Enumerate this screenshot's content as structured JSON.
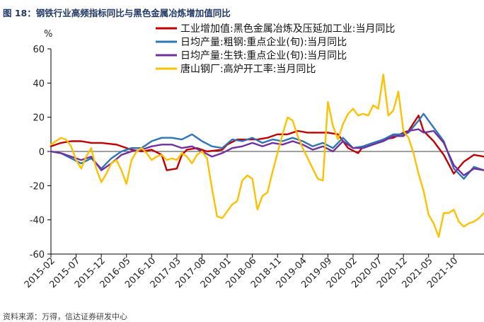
{
  "figure": {
    "title": "图 18：钢铁行业高频指标同比与黑色金属冶炼增加值同比",
    "source": "资料来源：万得，信达证券研发中心"
  },
  "chart_data": {
    "type": "line",
    "title": "",
    "ylabel": "%",
    "ylim": [
      -60,
      60
    ],
    "yticks": [
      60,
      40,
      20,
      0,
      -20,
      -40,
      -60
    ],
    "xlim": [
      "2015-02",
      "2022-04"
    ],
    "xticks": [
      "2015-02",
      "2015-07",
      "2015-12",
      "2016-05",
      "2016-10",
      "2017-03",
      "2017-08",
      "2018-01",
      "2018-06",
      "2018-11",
      "2019-04",
      "2019-09",
      "2020-02",
      "2020-07",
      "2020-12",
      "2021-05",
      "2021-10"
    ],
    "legend_position": "top-right",
    "series": [
      {
        "name": "工业增加值:黑色金属冶炼及压延加工业:当月同比",
        "color": "#c00000",
        "points": [
          [
            "2015-02",
            3
          ],
          [
            "2015-04",
            5
          ],
          [
            "2015-06",
            6
          ],
          [
            "2015-08",
            6
          ],
          [
            "2015-10",
            5
          ],
          [
            "2015-12",
            5
          ],
          [
            "2016-03",
            4
          ],
          [
            "2016-06",
            1
          ],
          [
            "2016-08",
            0
          ],
          [
            "2016-10",
            1
          ],
          [
            "2016-12",
            -2
          ],
          [
            "2017-01",
            -11
          ],
          [
            "2017-03",
            -10
          ],
          [
            "2017-04",
            -2
          ],
          [
            "2017-05",
            1
          ],
          [
            "2017-07",
            2
          ],
          [
            "2017-09",
            0
          ],
          [
            "2017-12",
            1
          ],
          [
            "2018-01",
            4
          ],
          [
            "2018-03",
            7
          ],
          [
            "2018-05",
            7
          ],
          [
            "2018-07",
            7
          ],
          [
            "2018-09",
            8
          ],
          [
            "2018-11",
            10
          ],
          [
            "2019-01",
            10
          ],
          [
            "2019-03",
            12
          ],
          [
            "2019-05",
            11
          ],
          [
            "2019-07",
            11
          ],
          [
            "2019-09",
            11
          ],
          [
            "2019-11",
            10
          ],
          [
            "2020-01",
            2
          ],
          [
            "2020-03",
            -1
          ],
          [
            "2020-04",
            3
          ],
          [
            "2020-06",
            5
          ],
          [
            "2020-08",
            7
          ],
          [
            "2020-10",
            8
          ],
          [
            "2020-12",
            11
          ],
          [
            "2021-01",
            12
          ],
          [
            "2021-03",
            21
          ],
          [
            "2021-04",
            12
          ],
          [
            "2021-06",
            6
          ],
          [
            "2021-08",
            -2
          ],
          [
            "2021-10",
            -13
          ],
          [
            "2021-12",
            -6
          ],
          [
            "2022-02",
            -2
          ],
          [
            "2022-04",
            -3
          ]
        ]
      },
      {
        "name": "日均产量:粗钢:重点企业(旬):当月同比",
        "color": "#2e75b6",
        "points": [
          [
            "2015-02",
            0
          ],
          [
            "2015-04",
            -1
          ],
          [
            "2015-06",
            -4
          ],
          [
            "2015-08",
            -7
          ],
          [
            "2015-10",
            -4
          ],
          [
            "2015-12",
            -10
          ],
          [
            "2016-02",
            -4
          ],
          [
            "2016-04",
            0
          ],
          [
            "2016-06",
            2
          ],
          [
            "2016-08",
            2
          ],
          [
            "2016-10",
            6
          ],
          [
            "2016-12",
            8
          ],
          [
            "2017-02",
            8
          ],
          [
            "2017-04",
            7
          ],
          [
            "2017-06",
            10
          ],
          [
            "2017-08",
            6
          ],
          [
            "2017-10",
            3
          ],
          [
            "2017-12",
            2
          ],
          [
            "2018-02",
            7
          ],
          [
            "2018-04",
            6
          ],
          [
            "2018-06",
            8
          ],
          [
            "2018-08",
            5
          ],
          [
            "2018-10",
            7
          ],
          [
            "2018-12",
            6
          ],
          [
            "2019-02",
            8
          ],
          [
            "2019-04",
            6
          ],
          [
            "2019-06",
            3
          ],
          [
            "2019-08",
            5
          ],
          [
            "2019-10",
            2
          ],
          [
            "2019-12",
            8
          ],
          [
            "2020-02",
            2
          ],
          [
            "2020-04",
            3
          ],
          [
            "2020-06",
            5
          ],
          [
            "2020-08",
            7
          ],
          [
            "2020-10",
            10
          ],
          [
            "2020-12",
            10
          ],
          [
            "2021-01",
            11
          ],
          [
            "2021-03",
            18
          ],
          [
            "2021-04",
            22
          ],
          [
            "2021-06",
            14
          ],
          [
            "2021-08",
            6
          ],
          [
            "2021-10",
            -10
          ],
          [
            "2021-12",
            -16
          ],
          [
            "2022-02",
            -9
          ],
          [
            "2022-04",
            -11
          ]
        ]
      },
      {
        "name": "日均产量:生铁:重点企业(旬):当月同比",
        "color": "#7030a0",
        "points": [
          [
            "2015-02",
            0
          ],
          [
            "2015-04",
            -1
          ],
          [
            "2015-06",
            -3
          ],
          [
            "2015-08",
            -5
          ],
          [
            "2015-10",
            -3
          ],
          [
            "2015-12",
            -11
          ],
          [
            "2016-02",
            -7
          ],
          [
            "2016-04",
            -2
          ],
          [
            "2016-06",
            0
          ],
          [
            "2016-08",
            1
          ],
          [
            "2016-10",
            3
          ],
          [
            "2016-12",
            4
          ],
          [
            "2017-02",
            4
          ],
          [
            "2017-04",
            2
          ],
          [
            "2017-06",
            3
          ],
          [
            "2017-08",
            0
          ],
          [
            "2017-10",
            -3
          ],
          [
            "2017-12",
            -1
          ],
          [
            "2018-02",
            2
          ],
          [
            "2018-04",
            3
          ],
          [
            "2018-06",
            5
          ],
          [
            "2018-08",
            3
          ],
          [
            "2018-10",
            5
          ],
          [
            "2018-12",
            4
          ],
          [
            "2019-02",
            6
          ],
          [
            "2019-04",
            4
          ],
          [
            "2019-06",
            1
          ],
          [
            "2019-08",
            3
          ],
          [
            "2019-10",
            0
          ],
          [
            "2019-12",
            6
          ],
          [
            "2020-02",
            2
          ],
          [
            "2020-04",
            2
          ],
          [
            "2020-06",
            4
          ],
          [
            "2020-08",
            6
          ],
          [
            "2020-10",
            9
          ],
          [
            "2020-12",
            9
          ],
          [
            "2021-01",
            12
          ],
          [
            "2021-03",
            13
          ],
          [
            "2021-04",
            11
          ],
          [
            "2021-06",
            12
          ],
          [
            "2021-08",
            5
          ],
          [
            "2021-10",
            -8
          ],
          [
            "2021-12",
            -14
          ],
          [
            "2022-02",
            -10
          ],
          [
            "2022-04",
            -11
          ]
        ]
      },
      {
        "name": "唐山钢厂:高炉开工率:当月同比",
        "color": "#ffc000",
        "points": [
          [
            "2015-02",
            4
          ],
          [
            "2015-03",
            6
          ],
          [
            "2015-04",
            8
          ],
          [
            "2015-05",
            7
          ],
          [
            "2015-06",
            3
          ],
          [
            "2015-07",
            -5
          ],
          [
            "2015-08",
            -10
          ],
          [
            "2015-09",
            -3
          ],
          [
            "2015-10",
            2
          ],
          [
            "2015-11",
            -10
          ],
          [
            "2015-12",
            -18
          ],
          [
            "2016-01",
            -13
          ],
          [
            "2016-02",
            -7
          ],
          [
            "2016-03",
            -5
          ],
          [
            "2016-04",
            -11
          ],
          [
            "2016-05",
            -19
          ],
          [
            "2016-06",
            -5
          ],
          [
            "2016-07",
            0
          ],
          [
            "2016-08",
            2
          ],
          [
            "2016-09",
            -1
          ],
          [
            "2016-10",
            -5
          ],
          [
            "2016-11",
            -3
          ],
          [
            "2016-12",
            -2
          ],
          [
            "2017-01",
            -5
          ],
          [
            "2017-02",
            -4
          ],
          [
            "2017-03",
            -5
          ],
          [
            "2017-04",
            -1
          ],
          [
            "2017-05",
            -3
          ],
          [
            "2017-06",
            -7
          ],
          [
            "2017-07",
            -2
          ],
          [
            "2017-08",
            0
          ],
          [
            "2017-09",
            -4
          ],
          [
            "2017-10",
            -22
          ],
          [
            "2017-11",
            -38
          ],
          [
            "2017-12",
            -39
          ],
          [
            "2018-01",
            -35
          ],
          [
            "2018-02",
            -31
          ],
          [
            "2018-03",
            -29
          ],
          [
            "2018-04",
            -17
          ],
          [
            "2018-05",
            -14
          ],
          [
            "2018-06",
            -16
          ],
          [
            "2018-07",
            -34
          ],
          [
            "2018-08",
            -26
          ],
          [
            "2018-09",
            -24
          ],
          [
            "2018-10",
            -12
          ],
          [
            "2018-11",
            -1
          ],
          [
            "2018-12",
            10
          ],
          [
            "2019-01",
            20
          ],
          [
            "2019-02",
            18
          ],
          [
            "2019-03",
            9
          ],
          [
            "2019-04",
            2
          ],
          [
            "2019-05",
            -4
          ],
          [
            "2019-06",
            -10
          ],
          [
            "2019-07",
            -16
          ],
          [
            "2019-08",
            -17
          ],
          [
            "2019-09",
            29
          ],
          [
            "2019-10",
            15
          ],
          [
            "2019-11",
            7
          ],
          [
            "2019-12",
            16
          ],
          [
            "2020-01",
            22
          ],
          [
            "2020-02",
            25
          ],
          [
            "2020-03",
            21
          ],
          [
            "2020-04",
            22
          ],
          [
            "2020-05",
            21
          ],
          [
            "2020-06",
            27
          ],
          [
            "2020-07",
            25
          ],
          [
            "2020-08",
            45
          ],
          [
            "2020-09",
            21
          ],
          [
            "2020-10",
            24
          ],
          [
            "2020-11",
            35
          ],
          [
            "2020-12",
            12
          ],
          [
            "2021-01",
            8
          ],
          [
            "2021-02",
            -1
          ],
          [
            "2021-03",
            -13
          ],
          [
            "2021-04",
            -23
          ],
          [
            "2021-05",
            -37
          ],
          [
            "2021-06",
            -42
          ],
          [
            "2021-07",
            -50
          ],
          [
            "2021-08",
            -36
          ],
          [
            "2021-09",
            -36
          ],
          [
            "2021-10",
            -34
          ],
          [
            "2021-11",
            -41
          ],
          [
            "2021-12",
            -44
          ],
          [
            "2022-01",
            -42
          ],
          [
            "2022-02",
            -41
          ],
          [
            "2022-03",
            -39
          ],
          [
            "2022-04",
            -36
          ]
        ]
      }
    ]
  }
}
